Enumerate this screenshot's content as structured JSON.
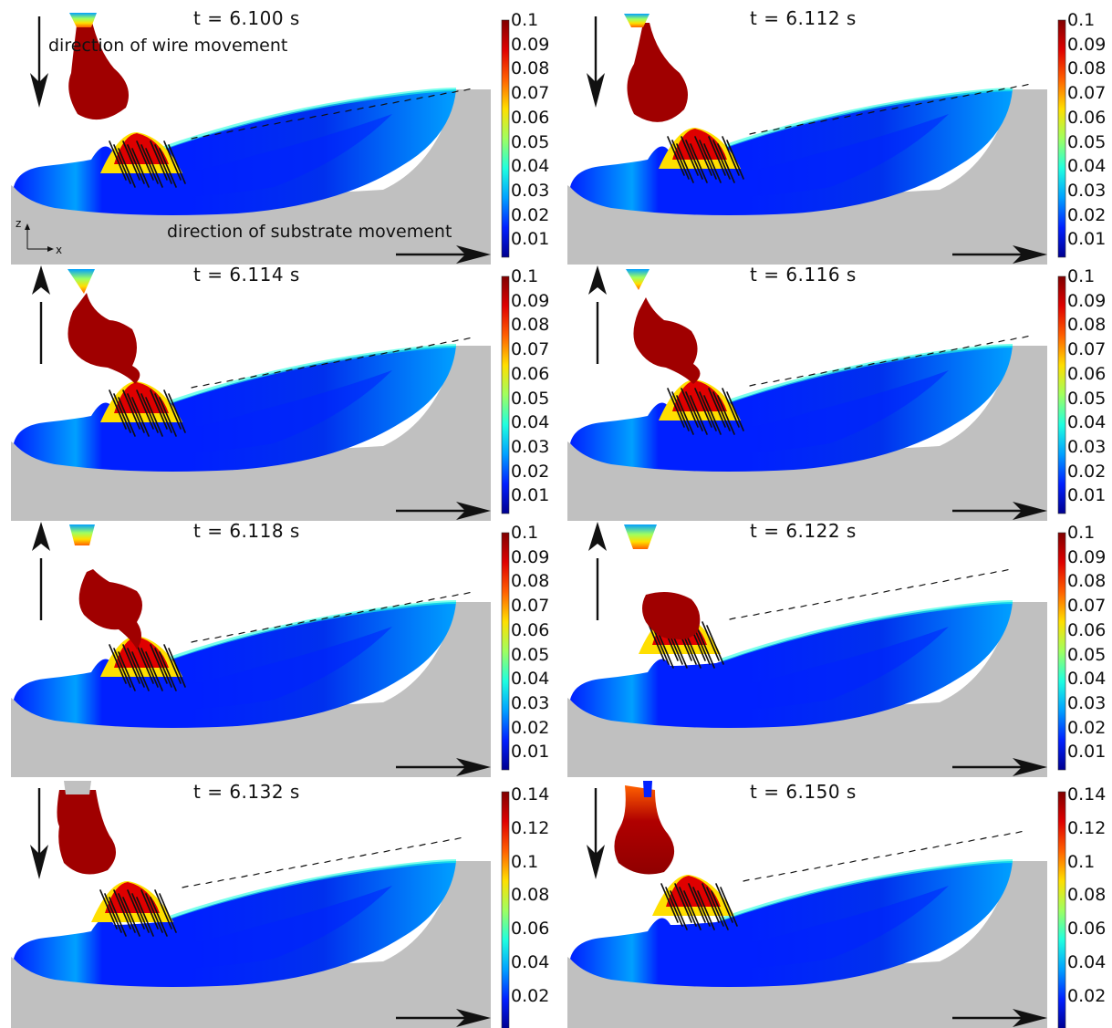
{
  "figure": {
    "wire_direction_label": "direction of wire movement",
    "substrate_direction_label": "direction of substrate movement",
    "axis_z": "z",
    "axis_x": "x",
    "colormap": [
      "#00008f",
      "#0020ff",
      "#00a0ff",
      "#20ffdf",
      "#9fff60",
      "#ffdf00",
      "#ff6000",
      "#df0000",
      "#800000"
    ],
    "substrate_color": "#c0c0c0",
    "panels": [
      {
        "time": "t = 6.100 s",
        "wire": "down",
        "stage": "detached",
        "ticks": [
          "0.1",
          "0.09",
          "0.08",
          "0.07",
          "0.06",
          "0.05",
          "0.04",
          "0.03",
          "0.02",
          "0.01"
        ]
      },
      {
        "time": "t = 6.112 s",
        "wire": "down",
        "stage": "approach",
        "ticks": [
          "0.1",
          "0.09",
          "0.08",
          "0.07",
          "0.06",
          "0.05",
          "0.04",
          "0.03",
          "0.02",
          "0.01"
        ]
      },
      {
        "time": "t = 6.114 s",
        "wire": "up",
        "stage": "bridge",
        "ticks": [
          "0.1",
          "0.09",
          "0.08",
          "0.07",
          "0.06",
          "0.05",
          "0.04",
          "0.03",
          "0.02",
          "0.01"
        ]
      },
      {
        "time": "t = 6.116 s",
        "wire": "up",
        "stage": "bridge2",
        "ticks": [
          "0.1",
          "0.09",
          "0.08",
          "0.07",
          "0.06",
          "0.05",
          "0.04",
          "0.03",
          "0.02",
          "0.01"
        ]
      },
      {
        "time": "t = 6.118 s",
        "wire": "up",
        "stage": "neck",
        "ticks": [
          "0.1",
          "0.09",
          "0.08",
          "0.07",
          "0.06",
          "0.05",
          "0.04",
          "0.03",
          "0.02",
          "0.01"
        ]
      },
      {
        "time": "t = 6.122 s",
        "wire": "up",
        "stage": "merge",
        "ticks": [
          "0.1",
          "0.09",
          "0.08",
          "0.07",
          "0.06",
          "0.05",
          "0.04",
          "0.03",
          "0.02",
          "0.01"
        ]
      },
      {
        "time": "t = 6.132 s",
        "wire": "down",
        "stage": "settle",
        "ticks": [
          "0.14",
          "0.12",
          "0.1",
          "0.08",
          "0.06",
          "0.04",
          "0.02"
        ]
      },
      {
        "time": "t = 6.150 s",
        "wire": "down",
        "stage": "settle2",
        "ticks": [
          "0.14",
          "0.12",
          "0.1",
          "0.08",
          "0.06",
          "0.04",
          "0.02"
        ]
      }
    ]
  }
}
